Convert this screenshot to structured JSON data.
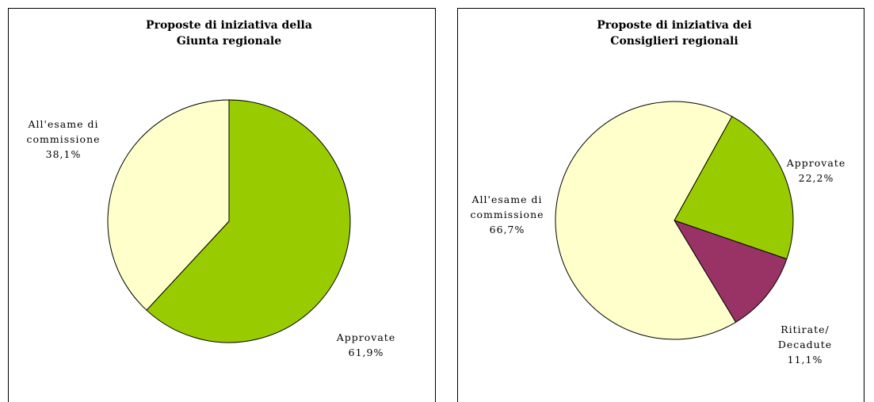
{
  "chart_data": [
    {
      "type": "pie",
      "title": "Proposte di iniziativa della Giunta regionale",
      "categories": [
        "Approvate",
        "All'esame di commissione"
      ],
      "values": [
        61.9,
        38.1
      ],
      "value_labels": [
        "61,9%",
        "38,1%"
      ],
      "colors": [
        "#99cc00",
        "#ffffcc"
      ]
    },
    {
      "type": "pie",
      "title": "Proposte di iniziativa dei Consiglieri regionali",
      "categories": [
        "Approvate",
        "Ritirate/ Decadute",
        "All'esame di commissione"
      ],
      "values": [
        22.2,
        11.1,
        66.7
      ],
      "value_labels": [
        "22,2%",
        "11,1%",
        "66,7%"
      ],
      "colors": [
        "#99cc00",
        "#993366",
        "#ffffcc"
      ]
    }
  ]
}
